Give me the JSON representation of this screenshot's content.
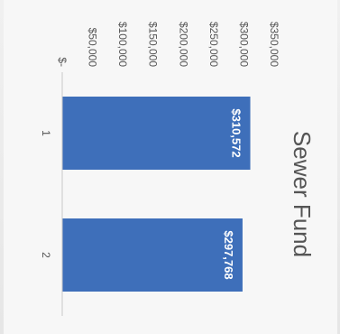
{
  "chart_data": {
    "type": "bar",
    "title": "Sewer Fund",
    "categories": [
      "1",
      "2"
    ],
    "values": [
      310572,
      297768
    ],
    "data_labels": [
      "$310,572",
      "$297,768"
    ],
    "ylim": [
      0,
      350000
    ],
    "y_ticks": [
      0,
      50000,
      100000,
      150000,
      200000,
      250000,
      300000,
      350000
    ],
    "y_tick_labels": [
      "$-",
      "$50,000",
      "$100,000",
      "$150,000",
      "$200,000",
      "$250,000",
      "$300,000",
      "$350,000"
    ],
    "xlabel": "",
    "ylabel": "",
    "grid": false,
    "orientation": "image rotated 90 degrees",
    "bar_color": "#3e6fba"
  }
}
